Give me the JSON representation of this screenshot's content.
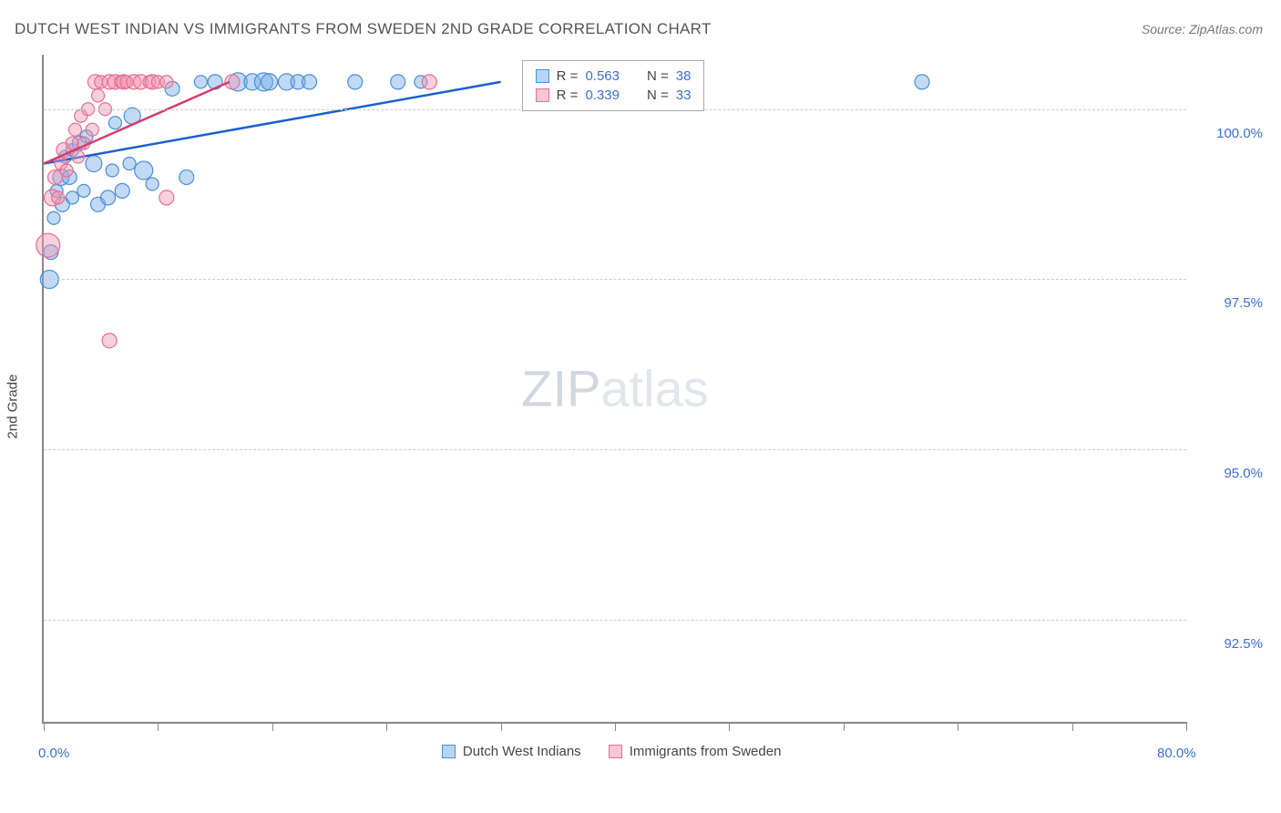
{
  "title": "DUTCH WEST INDIAN VS IMMIGRANTS FROM SWEDEN 2ND GRADE CORRELATION CHART",
  "source": "Source: ZipAtlas.com",
  "ylabel": "2nd Grade",
  "watermark": {
    "part1": "ZIP",
    "part2": "atlas"
  },
  "chart": {
    "type": "scatter",
    "xlim": [
      0,
      80
    ],
    "ylim": [
      91,
      100.8
    ],
    "x_axis": {
      "tick_positions": [
        0,
        8,
        16,
        24,
        32,
        40,
        48,
        56,
        64,
        72,
        80
      ],
      "label_min": "0.0%",
      "label_max": "80.0%"
    },
    "y_axis": {
      "gridlines": [
        92.5,
        95.0,
        97.5,
        100.0
      ],
      "labels": [
        "92.5%",
        "95.0%",
        "97.5%",
        "100.0%"
      ]
    },
    "background_color": "#ffffff",
    "grid_color": "#cccccc",
    "axis_color": "#888888",
    "label_color": "#3b6fd6",
    "series": [
      {
        "name": "Dutch West Indians",
        "marker_fill": "rgba(120,170,230,0.45)",
        "marker_stroke": "#4a8fd8",
        "line_color": "#1b5fd0",
        "swatch_fill": "#b9d4f2",
        "swatch_border": "#4a8fd8",
        "R": "0.563",
        "N": "38",
        "trend": {
          "x1": 0,
          "y1": 99.2,
          "x2": 32,
          "y2": 100.4
        },
        "points": [
          {
            "x": 0.4,
            "y": 97.5,
            "r": 10
          },
          {
            "x": 0.5,
            "y": 97.9,
            "r": 8
          },
          {
            "x": 0.7,
            "y": 98.4,
            "r": 7
          },
          {
            "x": 0.9,
            "y": 98.8,
            "r": 7
          },
          {
            "x": 1.2,
            "y": 99.0,
            "r": 9
          },
          {
            "x": 1.3,
            "y": 98.6,
            "r": 8
          },
          {
            "x": 1.5,
            "y": 99.3,
            "r": 7
          },
          {
            "x": 1.8,
            "y": 99.0,
            "r": 8
          },
          {
            "x": 2.0,
            "y": 99.4,
            "r": 7
          },
          {
            "x": 2.0,
            "y": 98.7,
            "r": 7
          },
          {
            "x": 2.5,
            "y": 99.5,
            "r": 8
          },
          {
            "x": 2.8,
            "y": 98.8,
            "r": 7
          },
          {
            "x": 3.0,
            "y": 99.6,
            "r": 7
          },
          {
            "x": 3.5,
            "y": 99.2,
            "r": 9
          },
          {
            "x": 3.8,
            "y": 98.6,
            "r": 8
          },
          {
            "x": 4.5,
            "y": 98.7,
            "r": 8
          },
          {
            "x": 4.8,
            "y": 99.1,
            "r": 7
          },
          {
            "x": 5.0,
            "y": 99.8,
            "r": 7
          },
          {
            "x": 5.5,
            "y": 98.8,
            "r": 8
          },
          {
            "x": 6.0,
            "y": 99.2,
            "r": 7
          },
          {
            "x": 6.2,
            "y": 99.9,
            "r": 9
          },
          {
            "x": 7.0,
            "y": 99.1,
            "r": 10
          },
          {
            "x": 7.6,
            "y": 98.9,
            "r": 7
          },
          {
            "x": 9.0,
            "y": 100.3,
            "r": 8
          },
          {
            "x": 10.0,
            "y": 99.0,
            "r": 8
          },
          {
            "x": 11.0,
            "y": 100.4,
            "r": 7
          },
          {
            "x": 12.0,
            "y": 100.4,
            "r": 8
          },
          {
            "x": 13.6,
            "y": 100.4,
            "r": 10
          },
          {
            "x": 14.6,
            "y": 100.4,
            "r": 9
          },
          {
            "x": 15.4,
            "y": 100.4,
            "r": 10
          },
          {
            "x": 15.8,
            "y": 100.4,
            "r": 9
          },
          {
            "x": 17.0,
            "y": 100.4,
            "r": 9
          },
          {
            "x": 17.8,
            "y": 100.4,
            "r": 8
          },
          {
            "x": 18.6,
            "y": 100.4,
            "r": 8
          },
          {
            "x": 21.8,
            "y": 100.4,
            "r": 8
          },
          {
            "x": 24.8,
            "y": 100.4,
            "r": 8
          },
          {
            "x": 26.4,
            "y": 100.4,
            "r": 7
          },
          {
            "x": 61.5,
            "y": 100.4,
            "r": 8
          }
        ]
      },
      {
        "name": "Immigrants from Sweden",
        "marker_fill": "rgba(240,150,175,0.45)",
        "marker_stroke": "#e66f94",
        "line_color": "#d83a6a",
        "swatch_fill": "#f6c6d5",
        "swatch_border": "#e66f94",
        "R": "0.339",
        "N": "33",
        "trend": {
          "x1": 0,
          "y1": 99.2,
          "x2": 13,
          "y2": 100.4
        },
        "points": [
          {
            "x": 0.3,
            "y": 98.0,
            "r": 13
          },
          {
            "x": 0.6,
            "y": 98.7,
            "r": 9
          },
          {
            "x": 0.8,
            "y": 99.0,
            "r": 8
          },
          {
            "x": 1.0,
            "y": 98.7,
            "r": 7
          },
          {
            "x": 1.2,
            "y": 99.2,
            "r": 7
          },
          {
            "x": 1.4,
            "y": 99.4,
            "r": 8
          },
          {
            "x": 1.6,
            "y": 99.1,
            "r": 7
          },
          {
            "x": 2.0,
            "y": 99.5,
            "r": 7
          },
          {
            "x": 2.2,
            "y": 99.7,
            "r": 7
          },
          {
            "x": 2.4,
            "y": 99.3,
            "r": 7
          },
          {
            "x": 2.6,
            "y": 99.9,
            "r": 7
          },
          {
            "x": 2.8,
            "y": 99.5,
            "r": 7
          },
          {
            "x": 3.1,
            "y": 100.0,
            "r": 7
          },
          {
            "x": 3.4,
            "y": 99.7,
            "r": 7
          },
          {
            "x": 3.6,
            "y": 100.4,
            "r": 8
          },
          {
            "x": 3.8,
            "y": 100.2,
            "r": 7
          },
          {
            "x": 4.0,
            "y": 100.4,
            "r": 7
          },
          {
            "x": 4.3,
            "y": 100.0,
            "r": 7
          },
          {
            "x": 4.6,
            "y": 100.4,
            "r": 8
          },
          {
            "x": 5.0,
            "y": 100.4,
            "r": 8
          },
          {
            "x": 5.4,
            "y": 100.4,
            "r": 7
          },
          {
            "x": 5.6,
            "y": 100.4,
            "r": 8
          },
          {
            "x": 5.8,
            "y": 100.4,
            "r": 7
          },
          {
            "x": 6.3,
            "y": 100.4,
            "r": 8
          },
          {
            "x": 6.8,
            "y": 100.4,
            "r": 8
          },
          {
            "x": 7.4,
            "y": 100.4,
            "r": 7
          },
          {
            "x": 7.6,
            "y": 100.4,
            "r": 8
          },
          {
            "x": 8.0,
            "y": 100.4,
            "r": 7
          },
          {
            "x": 8.6,
            "y": 100.4,
            "r": 7
          },
          {
            "x": 8.6,
            "y": 98.7,
            "r": 8
          },
          {
            "x": 13.2,
            "y": 100.4,
            "r": 8
          },
          {
            "x": 27.0,
            "y": 100.4,
            "r": 8
          },
          {
            "x": 4.6,
            "y": 96.6,
            "r": 8
          }
        ]
      }
    ]
  },
  "legend_top": {
    "rows": [
      {
        "R_label": "R =",
        "N_label": "N ="
      },
      {
        "R_label": "R =",
        "N_label": "N ="
      }
    ]
  },
  "legend_bottom": {
    "items": [
      "Dutch West Indians",
      "Immigrants from Sweden"
    ]
  }
}
